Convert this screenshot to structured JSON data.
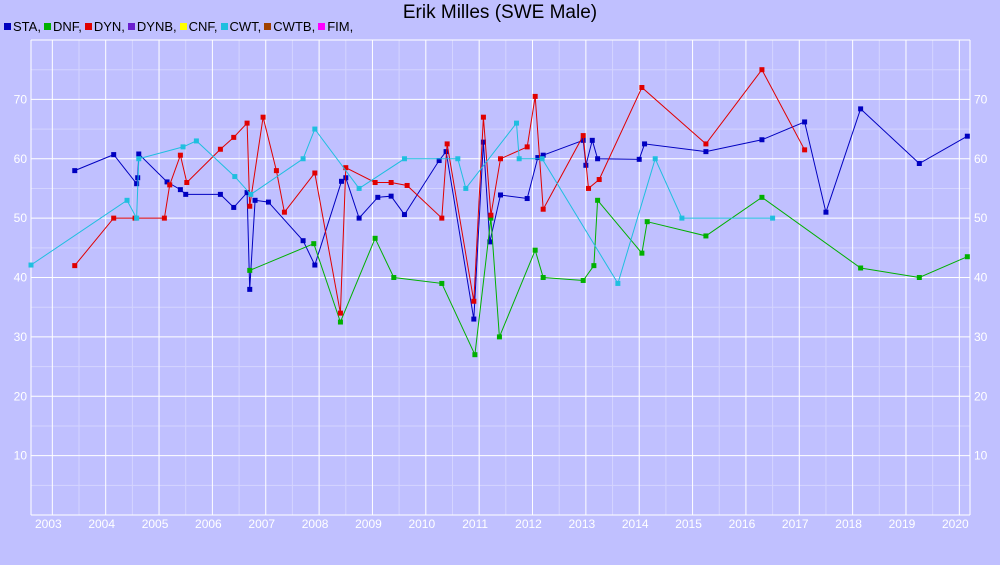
{
  "title": "Erik Milles (SWE Male)",
  "chart_data": {
    "type": "line",
    "title": "Erik Milles (SWE Male)",
    "xlabel": "",
    "ylabel": "",
    "xlim": [
      2002.6,
      2020.2
    ],
    "ylim": [
      0,
      80
    ],
    "x_ticks": [
      2003,
      2004,
      2005,
      2006,
      2007,
      2008,
      2009,
      2010,
      2011,
      2012,
      2013,
      2014,
      2015,
      2016,
      2017,
      2018,
      2019,
      2020
    ],
    "y_ticks": [
      10,
      20,
      30,
      40,
      50,
      60,
      70
    ],
    "grid": true,
    "legend_position": "top-left",
    "legend": [
      {
        "label": "STA,",
        "color": "#0000c0"
      },
      {
        "label": "DNF,",
        "color": "#00b000"
      },
      {
        "label": "DYN,",
        "color": "#e00000"
      },
      {
        "label": "DYNB,",
        "color": "#6a1ecf"
      },
      {
        "label": "CNF,",
        "color": "#ffff00"
      },
      {
        "label": "CWT,",
        "color": "#1fbfdf"
      },
      {
        "label": "CWTB,",
        "color": "#a04000"
      },
      {
        "label": "FIM,",
        "color": "#ff00ff"
      }
    ],
    "series": [
      {
        "name": "STA",
        "color": "#0000c0",
        "points": [
          [
            2003.42,
            58
          ],
          [
            2004.15,
            60.7
          ],
          [
            2004.58,
            55.8
          ],
          [
            2004.6,
            56.8
          ],
          [
            2004.62,
            60.8
          ],
          [
            2005.15,
            56.1
          ],
          [
            2005.4,
            54.8
          ],
          [
            2005.5,
            54
          ],
          [
            2006.15,
            54
          ],
          [
            2006.4,
            51.8
          ],
          [
            2006.65,
            54.3
          ],
          [
            2006.7,
            38
          ],
          [
            2006.8,
            53
          ],
          [
            2007.05,
            52.7
          ],
          [
            2007.7,
            46.2
          ],
          [
            2007.92,
            42.1
          ],
          [
            2008.42,
            56.2
          ],
          [
            2008.5,
            56.8
          ],
          [
            2008.75,
            50
          ],
          [
            2009.1,
            53.5
          ],
          [
            2009.35,
            53.7
          ],
          [
            2009.6,
            50.6
          ],
          [
            2010.25,
            59.7
          ],
          [
            2010.38,
            61.2
          ],
          [
            2010.9,
            33
          ],
          [
            2011.08,
            62.8
          ],
          [
            2011.2,
            46
          ],
          [
            2011.4,
            53.9
          ],
          [
            2011.9,
            53.3
          ],
          [
            2012.1,
            60.2
          ],
          [
            2012.2,
            60.6
          ],
          [
            2012.95,
            63.1
          ],
          [
            2013.0,
            58.9
          ],
          [
            2013.12,
            63.1
          ],
          [
            2013.22,
            60
          ],
          [
            2014.0,
            59.9
          ],
          [
            2014.1,
            62.5
          ],
          [
            2015.25,
            61.2
          ],
          [
            2016.3,
            63.2
          ],
          [
            2017.1,
            66.2
          ],
          [
            2017.5,
            51
          ],
          [
            2018.15,
            68.4
          ],
          [
            2019.25,
            59.2
          ],
          [
            2020.15,
            63.8
          ]
        ]
      },
      {
        "name": "DNF",
        "color": "#00b000",
        "points": [
          [
            2006.7,
            41.2
          ],
          [
            2007.9,
            45.7
          ],
          [
            2008.4,
            32.5
          ],
          [
            2009.05,
            46.6
          ],
          [
            2009.4,
            40
          ],
          [
            2010.3,
            39
          ],
          [
            2010.92,
            27
          ],
          [
            2011.22,
            50
          ],
          [
            2011.38,
            30
          ],
          [
            2012.05,
            44.6
          ],
          [
            2012.2,
            40
          ],
          [
            2012.95,
            39.5
          ],
          [
            2013.15,
            42
          ],
          [
            2013.22,
            53
          ],
          [
            2014.05,
            44.1
          ],
          [
            2014.15,
            49.4
          ],
          [
            2015.25,
            47
          ],
          [
            2016.3,
            53.5
          ],
          [
            2018.15,
            41.6
          ],
          [
            2019.25,
            40
          ],
          [
            2020.15,
            43.5
          ]
        ]
      },
      {
        "name": "DYN",
        "color": "#e00000",
        "points": [
          [
            2003.42,
            42
          ],
          [
            2004.15,
            50
          ],
          [
            2004.55,
            50
          ],
          [
            2005.1,
            50
          ],
          [
            2005.2,
            55.6
          ],
          [
            2005.4,
            60.6
          ],
          [
            2005.52,
            56
          ],
          [
            2006.15,
            61.6
          ],
          [
            2006.4,
            63.6
          ],
          [
            2006.65,
            66
          ],
          [
            2006.7,
            52
          ],
          [
            2006.95,
            67
          ],
          [
            2007.2,
            58
          ],
          [
            2007.35,
            51
          ],
          [
            2007.92,
            57.6
          ],
          [
            2008.4,
            34
          ],
          [
            2008.5,
            58.5
          ],
          [
            2009.05,
            56
          ],
          [
            2009.35,
            56
          ],
          [
            2009.65,
            55.5
          ],
          [
            2010.3,
            50
          ],
          [
            2010.4,
            62.5
          ],
          [
            2010.9,
            36
          ],
          [
            2011.08,
            67
          ],
          [
            2011.22,
            50.5
          ],
          [
            2011.4,
            60
          ],
          [
            2011.9,
            62
          ],
          [
            2012.05,
            70.5
          ],
          [
            2012.2,
            51.5
          ],
          [
            2012.95,
            63.9
          ],
          [
            2013.05,
            55
          ],
          [
            2013.25,
            56.5
          ],
          [
            2014.05,
            72
          ],
          [
            2015.25,
            62.5
          ],
          [
            2016.3,
            75
          ],
          [
            2017.1,
            61.5
          ]
        ]
      },
      {
        "name": "CWT",
        "color": "#1fbfdf",
        "points": [
          [
            2002.6,
            42.1
          ],
          [
            2004.4,
            53
          ],
          [
            2004.58,
            50
          ],
          [
            2004.62,
            60
          ],
          [
            2005.45,
            62
          ],
          [
            2005.7,
            63
          ],
          [
            2006.42,
            57
          ],
          [
            2006.72,
            54
          ],
          [
            2007.7,
            60
          ],
          [
            2007.92,
            65
          ],
          [
            2008.75,
            55
          ],
          [
            2009.6,
            60
          ],
          [
            2010.6,
            60
          ],
          [
            2010.75,
            55
          ],
          [
            2011.7,
            66
          ],
          [
            2011.75,
            60
          ],
          [
            2012.18,
            60
          ],
          [
            2013.6,
            39
          ],
          [
            2014.3,
            60
          ],
          [
            2014.8,
            50
          ],
          [
            2016.5,
            50
          ]
        ]
      },
      {
        "name": "DYNB",
        "color": "#6a1ecf",
        "points": []
      },
      {
        "name": "CNF",
        "color": "#ffff00",
        "points": []
      },
      {
        "name": "CWTB",
        "color": "#a04000",
        "points": []
      },
      {
        "name": "FIM",
        "color": "#ff00ff",
        "points": []
      }
    ]
  }
}
